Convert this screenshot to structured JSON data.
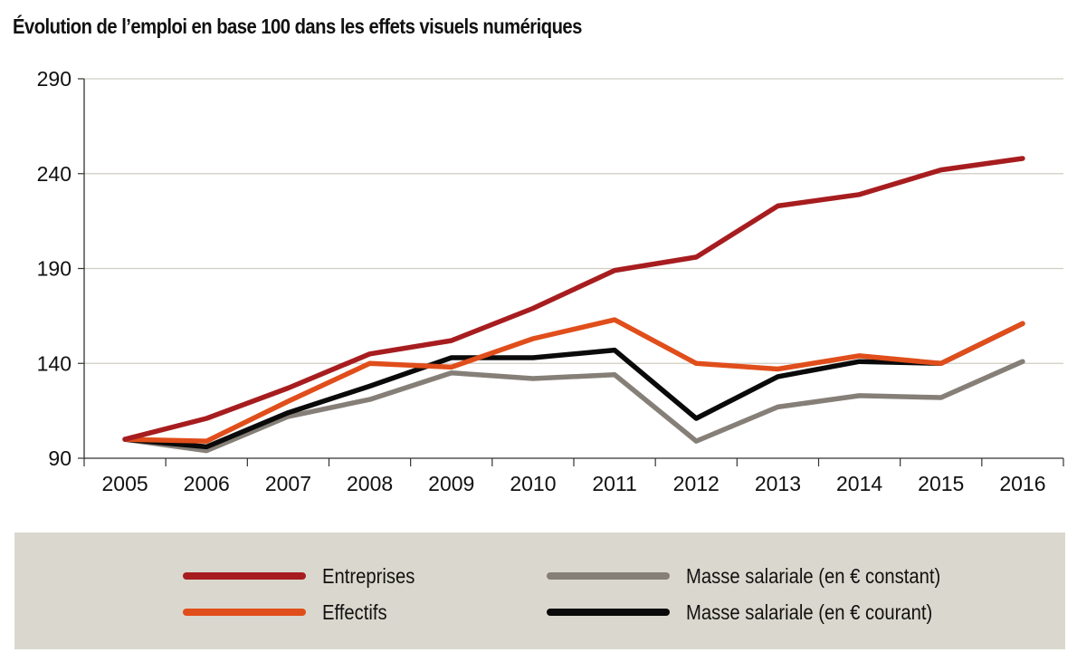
{
  "title": "Évolution de l’emploi en base 100 dans les effets visuels numériques",
  "chart_data": {
    "type": "line",
    "title": "Évolution de l’emploi en base 100 dans les effets visuels numériques",
    "xlabel": "",
    "ylabel": "",
    "categories": [
      "2005",
      "2006",
      "2007",
      "2008",
      "2009",
      "2010",
      "2011",
      "2012",
      "2013",
      "2014",
      "2015",
      "2016"
    ],
    "yticks": [
      "90",
      "140",
      "190",
      "240",
      "290"
    ],
    "ylim": [
      90,
      290
    ],
    "grid": true,
    "legend_position": "bottom",
    "series": [
      {
        "name": "Entreprises",
        "color": "#a71d1f",
        "values": [
          100,
          111,
          127,
          145,
          152,
          169,
          189,
          196,
          223,
          229,
          242,
          248
        ]
      },
      {
        "name": "Effectifs",
        "color": "#e04e1b",
        "values": [
          100,
          99,
          120,
          140,
          138,
          153,
          163,
          140,
          137,
          144,
          140,
          161
        ]
      },
      {
        "name": "Masse salariale (en € constant)",
        "color": "#857f78",
        "values": [
          100,
          94,
          112,
          121,
          135,
          132,
          134,
          99,
          117,
          123,
          122,
          141
        ]
      },
      {
        "name": "Masse salariale (en € courant)",
        "color": "#0a0a0a",
        "values": [
          100,
          96,
          114,
          128,
          143,
          143,
          147,
          111,
          133,
          141,
          140,
          161
        ]
      }
    ]
  },
  "legend": {
    "items": [
      {
        "label": "Entreprises",
        "color": "#a71d1f"
      },
      {
        "label": "Effectifs",
        "color": "#e04e1b"
      },
      {
        "label": "Masse salariale (en € constant)",
        "color": "#857f78"
      },
      {
        "label": "Masse salariale (en € courant)",
        "color": "#0a0a0a"
      }
    ]
  }
}
